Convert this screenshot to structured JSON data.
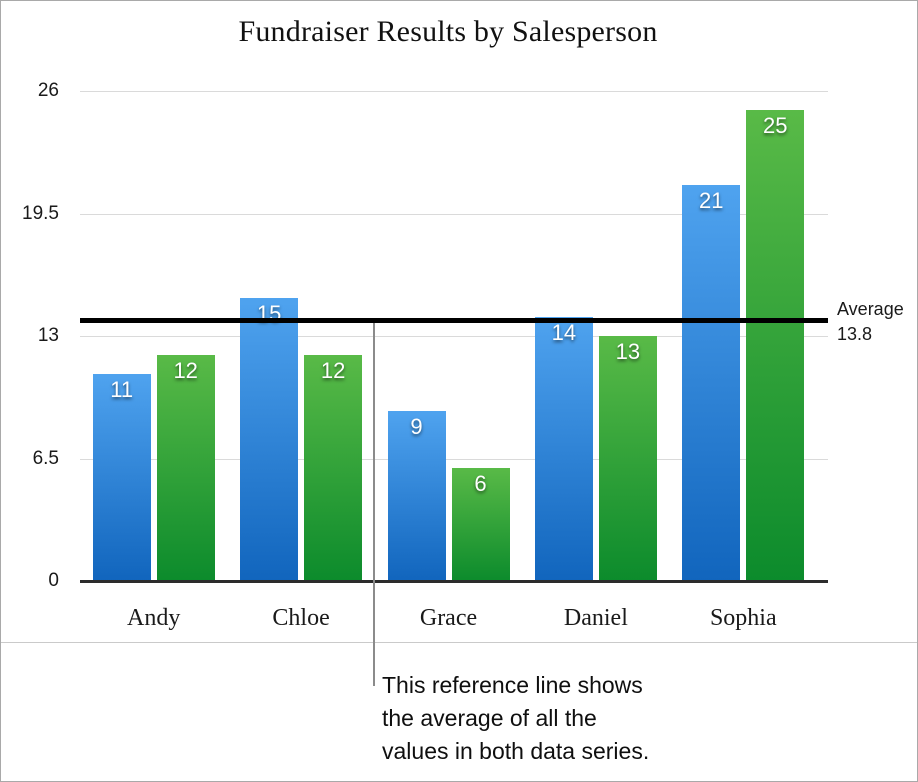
{
  "title": "Fundraiser Results by Salesperson",
  "chart_data": {
    "type": "bar",
    "categories": [
      "Andy",
      "Chloe",
      "Grace",
      "Daniel",
      "Sophia"
    ],
    "series": [
      {
        "id": "blue-series",
        "values": [
          11,
          15,
          9,
          14,
          21
        ],
        "color_top": "#4fa3ef",
        "color_bottom": "#1165bd"
      },
      {
        "id": "green-series",
        "values": [
          12,
          12,
          6,
          13,
          25
        ],
        "color_top": "#59ba47",
        "color_bottom": "#0c8b2c"
      }
    ],
    "bar_value_labels": [
      [
        "11",
        "15",
        "9",
        "14",
        "21"
      ],
      [
        "12",
        "12",
        "6",
        "13",
        "25"
      ]
    ],
    "y_ticks": [
      0,
      6.5,
      13,
      19.5,
      26
    ],
    "y_tick_labels": [
      "0",
      "6.5",
      "13",
      "19.5",
      "26"
    ],
    "ylim": [
      0,
      26
    ],
    "grid": true,
    "legend": "none",
    "reference_line": {
      "value": 13.8,
      "label_lines": [
        "Average",
        "13.8"
      ],
      "color": "#000000"
    }
  },
  "annotation": {
    "lines": [
      "This reference line shows",
      "the average of all the",
      "values in both data series."
    ]
  },
  "colors": {
    "gridline": "#dadada",
    "axis_baseline": "#2c2c2c",
    "callout_line": "#8b8b8b",
    "frame_border": "#a9a9a9",
    "text": "#1a1a1a"
  }
}
